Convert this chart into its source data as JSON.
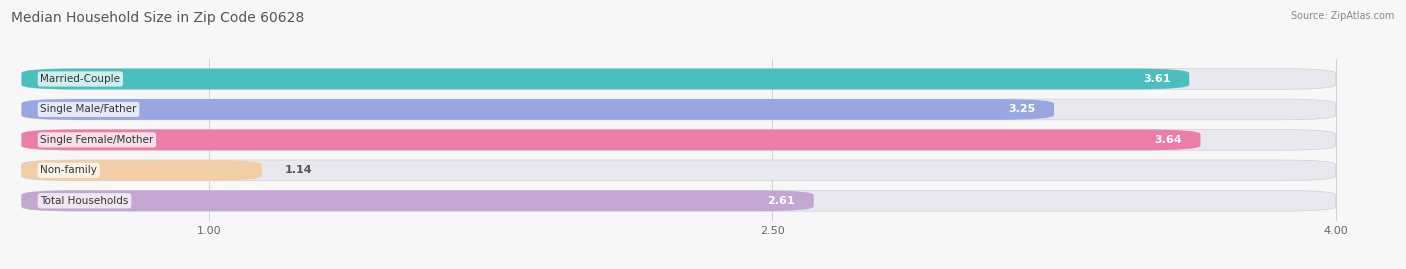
{
  "title": "Median Household Size in Zip Code 60628",
  "source": "Source: ZipAtlas.com",
  "categories": [
    "Married-Couple",
    "Single Male/Father",
    "Single Female/Mother",
    "Non-family",
    "Total Households"
  ],
  "values": [
    3.61,
    3.25,
    3.64,
    1.14,
    2.61
  ],
  "bar_colors": [
    "#29b5b5",
    "#8899dd",
    "#ee6699",
    "#f5c998",
    "#bb99cc"
  ],
  "bar_bg_color": "#e8e8ee",
  "background_color": "#f7f7f7",
  "xlim_min": 0.5,
  "xlim_max": 4.15,
  "xticks": [
    1.0,
    2.5,
    4.0
  ],
  "label_fontsize": 7.5,
  "value_fontsize": 8,
  "title_fontsize": 10,
  "bar_height": 0.68,
  "bar_gap": 1.0,
  "rounding": 0.15
}
